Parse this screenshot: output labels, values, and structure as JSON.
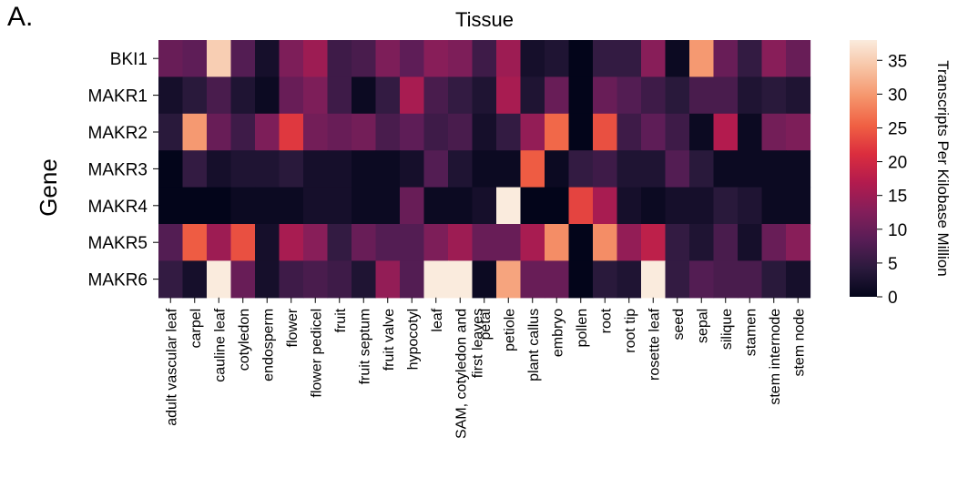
{
  "panel_label": "A.",
  "chart_data": {
    "type": "heatmap",
    "title": "Tissue",
    "xlabel": "",
    "ylabel": "Gene",
    "colorbar_label": "Transcripts Per Kilobase Million",
    "value_range": [
      0,
      38
    ],
    "colorbar_ticks": [
      "0",
      "5",
      "10",
      "15",
      "20",
      "25",
      "30",
      "35"
    ],
    "colormap": "rocket",
    "colormap_stops": [
      "#03051a",
      "#2b1a3d",
      "#581d56",
      "#841e5a",
      "#b21b4e",
      "#db2d3e",
      "#f06043",
      "#f5946b",
      "#f7c2a2",
      "#faebdd"
    ],
    "rows": [
      "BKI1",
      "MAKR1",
      "MAKR2",
      "MAKR3",
      "MAKR4",
      "MAKR5",
      "MAKR6"
    ],
    "columns": [
      "adult vascular leaf",
      "carpel",
      "cauline leaf",
      "cotyledon",
      "endosperm",
      "flower",
      "flower pedicel",
      "fruit",
      "fruit septum",
      "fruit valve",
      "hypocotyl",
      "leaf",
      "SAM, cotyledon and first leaves",
      "petal",
      "petiole",
      "plant callus",
      "embryo",
      "pollen",
      "root",
      "root tip",
      "rosette leaf",
      "seed",
      "sepal",
      "silique",
      "stamen",
      "stem internode",
      "stem node"
    ],
    "values": [
      [
        10,
        9,
        35,
        8,
        2,
        12,
        15,
        6,
        7,
        12,
        9,
        13,
        12,
        6,
        15,
        2,
        3,
        0,
        5,
        5,
        13,
        1,
        30,
        10,
        5,
        13,
        10
      ],
      [
        2,
        4,
        7,
        3,
        1,
        10,
        12,
        6,
        1,
        5,
        16,
        7,
        5,
        3,
        16,
        3,
        10,
        0,
        10,
        8,
        6,
        4,
        7,
        7,
        3,
        4,
        3
      ],
      [
        4,
        30,
        10,
        6,
        12,
        22,
        11,
        10,
        11,
        7,
        9,
        6,
        7,
        2,
        5,
        14,
        26,
        0,
        24,
        6,
        9,
        6,
        1,
        17,
        1,
        11,
        12
      ],
      [
        0,
        5,
        2,
        3,
        3,
        4,
        2,
        2,
        1,
        1,
        2,
        8,
        3,
        1,
        1,
        25,
        1,
        5,
        6,
        3,
        3,
        8,
        4,
        1,
        1,
        1,
        1
      ],
      [
        0,
        0,
        0,
        1,
        1,
        1,
        2,
        2,
        1,
        1,
        10,
        1,
        1,
        2,
        38,
        0,
        0,
        23,
        16,
        2,
        1,
        2,
        2,
        4,
        3,
        1,
        1
      ],
      [
        8,
        25,
        15,
        24,
        2,
        16,
        13,
        5,
        10,
        8,
        8,
        12,
        15,
        10,
        10,
        16,
        29,
        0,
        29,
        14,
        18,
        5,
        3,
        7,
        2,
        10,
        13
      ],
      [
        5,
        2,
        38,
        10,
        2,
        6,
        7,
        6,
        3,
        14,
        8,
        38,
        38,
        1,
        31,
        10,
        10,
        0,
        4,
        3,
        38,
        5,
        8,
        7,
        7,
        4,
        2
      ]
    ]
  }
}
